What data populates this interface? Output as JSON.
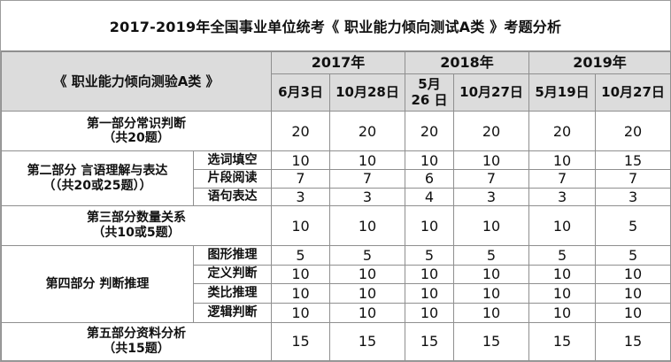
{
  "title": "2017-2019年全国事业单位统考《 职业能力倾向测试A类 》考题分析",
  "header": {
    "corner": "《 职业能力倾向测验A类 》",
    "years": [
      "2017年",
      "2018年",
      "2019年"
    ],
    "dates": [
      "6月3日",
      "10月28日",
      "5月\n26 日",
      "10月27日",
      "5月19日",
      "10月27日"
    ]
  },
  "sections": {
    "s1": {
      "label": "第一部分常识判断\n（共20题）",
      "values": [
        "20",
        "20",
        "20",
        "20",
        "20",
        "20"
      ]
    },
    "s2": {
      "label": "第二部分 言语理解与表达\n（（共20或25题））",
      "rows": [
        {
          "label": "选词填空",
          "values": [
            "10",
            "10",
            "10",
            "10",
            "10",
            "15"
          ]
        },
        {
          "label": "片段阅读",
          "values": [
            "7",
            "7",
            "6",
            "7",
            "7",
            "7"
          ]
        },
        {
          "label": "语句表达",
          "values": [
            "3",
            "3",
            "4",
            "3",
            "3",
            "3"
          ]
        }
      ]
    },
    "s3": {
      "label": "第三部分数量关系\n（共10或5题）",
      "values": [
        "10",
        "10",
        "10",
        "10",
        "10",
        "5"
      ]
    },
    "s4": {
      "label": "第四部分 判断推理",
      "rows": [
        {
          "label": "图形推理",
          "values": [
            "5",
            "5",
            "5",
            "5",
            "5",
            "5"
          ]
        },
        {
          "label": "定义判断",
          "values": [
            "10",
            "10",
            "10",
            "10",
            "10",
            "10"
          ]
        },
        {
          "label": "类比推理",
          "values": [
            "10",
            "10",
            "10",
            "10",
            "10",
            "10"
          ]
        },
        {
          "label": "逻辑判断",
          "values": [
            "10",
            "10",
            "10",
            "10",
            "10",
            "10"
          ]
        }
      ]
    },
    "s5": {
      "label": "第五部分资料分析\n（共15题）",
      "values": [
        "15",
        "15",
        "15",
        "15",
        "15",
        "15"
      ]
    }
  }
}
